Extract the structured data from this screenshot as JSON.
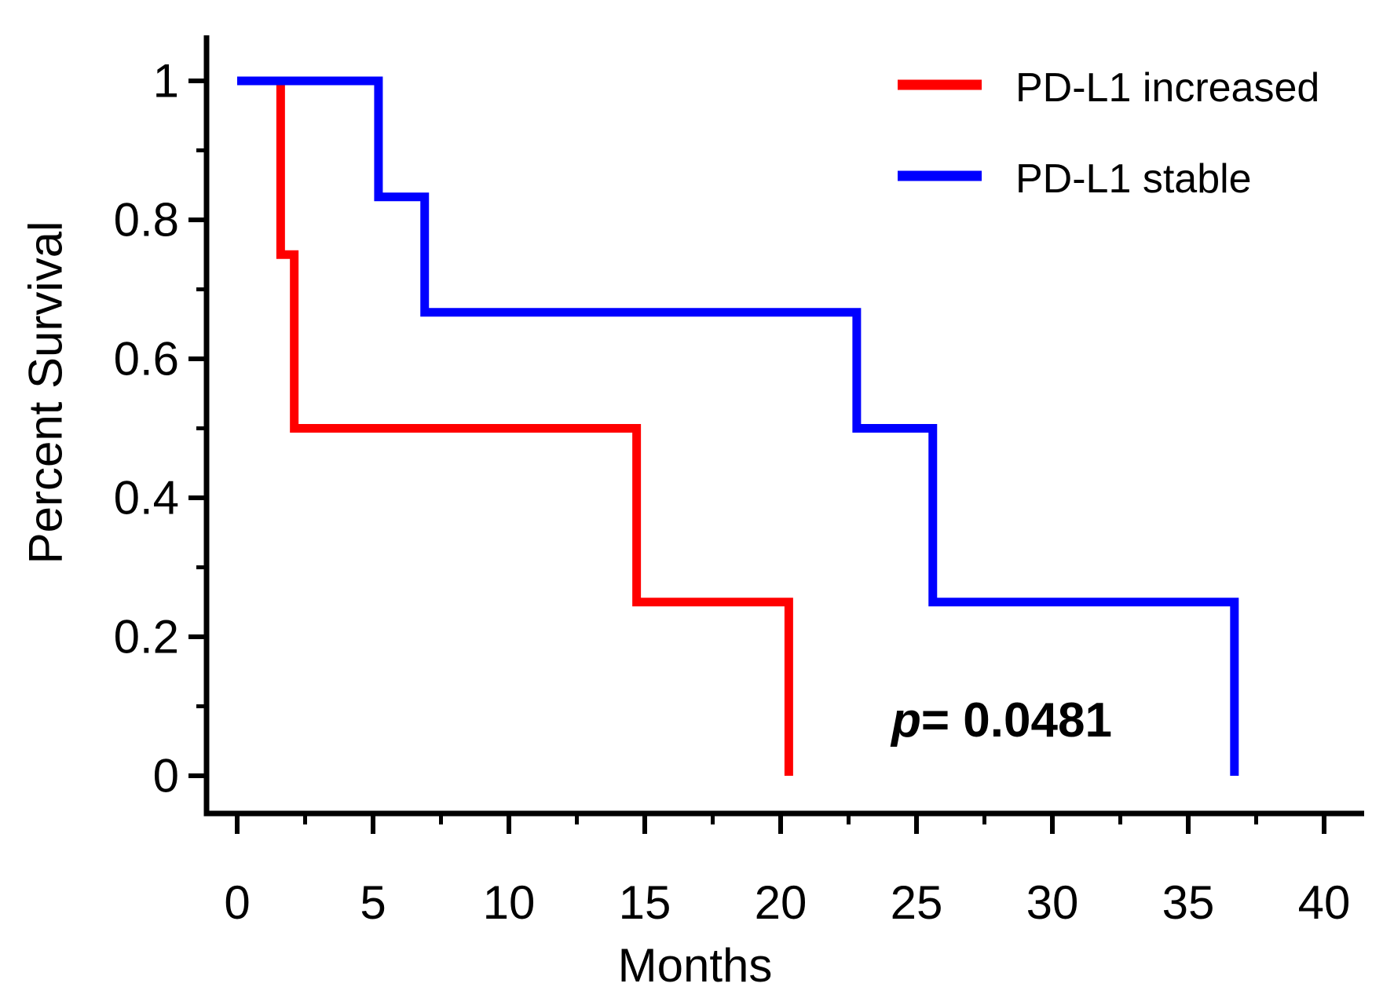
{
  "figure_title": "",
  "chart_data": {
    "type": "line",
    "subtype": "kaplan-meier-step",
    "title": "",
    "xlabel": "Months",
    "ylabel": "Percent Survival",
    "xlim": [
      0,
      40
    ],
    "ylim": [
      0,
      1
    ],
    "grid": false,
    "legend_position": "top-right",
    "background_color": "#ffffff",
    "axis_color": "#000000",
    "text_color": "#000000",
    "x_ticks": {
      "major": [
        {
          "value": 0,
          "label": "0"
        },
        {
          "value": 5,
          "label": "5"
        },
        {
          "value": 10,
          "label": "10"
        },
        {
          "value": 15,
          "label": "15"
        },
        {
          "value": 20,
          "label": "20"
        },
        {
          "value": 25,
          "label": "25"
        },
        {
          "value": 30,
          "label": "30"
        },
        {
          "value": 35,
          "label": "35"
        },
        {
          "value": 40,
          "label": "40"
        }
      ],
      "minor": [
        2.5,
        7.5,
        12.5,
        17.5,
        22.5,
        27.5,
        32.5,
        37.5
      ]
    },
    "y_ticks": {
      "major": [
        {
          "value": 0,
          "label": "0"
        },
        {
          "value": 0.2,
          "label": "0.2"
        },
        {
          "value": 0.4,
          "label": "0.4"
        },
        {
          "value": 0.6,
          "label": "0.6"
        },
        {
          "value": 0.8,
          "label": "0.8"
        },
        {
          "value": 1,
          "label": "1"
        }
      ],
      "minor": [
        0.1,
        0.3,
        0.5,
        0.7,
        0.9
      ]
    },
    "series": [
      {
        "name": "PD-L1 increased",
        "color": "#ff0000",
        "steps_note": "pairs of [time_months, survival_fraction_after_drop]; curve starts at [0,1]",
        "steps": [
          [
            0,
            1
          ],
          [
            1.6,
            0.75
          ],
          [
            2.1,
            0.5
          ],
          [
            14.7,
            0.25
          ],
          [
            20.3,
            0
          ]
        ]
      },
      {
        "name": "PD-L1 stable",
        "color": "#0000ff",
        "steps_note": "pairs of [time_months, survival_fraction_after_drop]; curve starts at [0,1]",
        "steps": [
          [
            0,
            1
          ],
          [
            5.2,
            0.833
          ],
          [
            6.9,
            0.667
          ],
          [
            22.8,
            0.5
          ],
          [
            25.6,
            0.25
          ],
          [
            36.7,
            0
          ]
        ]
      }
    ],
    "annotation": {
      "p_italic": "p",
      "p_rest": "= 0.0481"
    }
  }
}
